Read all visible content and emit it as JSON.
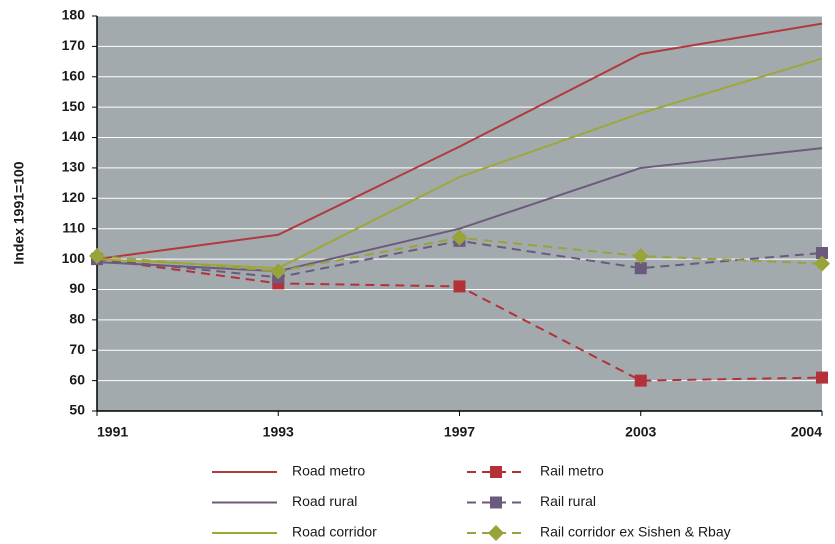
{
  "chart_data": {
    "type": "line",
    "y_label": "Index 1991=100",
    "categories": [
      "1991",
      "1993",
      "1997",
      "2003",
      "2004"
    ],
    "ylim": [
      50,
      180
    ],
    "yticks": [
      50,
      60,
      70,
      80,
      90,
      100,
      110,
      120,
      130,
      140,
      150,
      160,
      170,
      180
    ],
    "grid": true,
    "series": [
      {
        "name": "Road metro",
        "color": "#b03a3e",
        "dash": false,
        "marker": "none",
        "values": [
          100,
          108,
          137,
          167.5,
          177.5
        ]
      },
      {
        "name": "Rail metro",
        "color": "#b3323a",
        "dash": true,
        "marker": "square",
        "values": [
          100,
          92,
          91,
          60,
          61
        ]
      },
      {
        "name": "Road rural",
        "color": "#6e5a7e",
        "dash": false,
        "marker": "none",
        "values": [
          99,
          96,
          110,
          130,
          136.5
        ]
      },
      {
        "name": "Rail rural",
        "color": "#6b5a7e",
        "dash": true,
        "marker": "square",
        "values": [
          100,
          94,
          106,
          97,
          102
        ]
      },
      {
        "name": "Road corridor",
        "color": "#9da83a",
        "dash": false,
        "marker": "none",
        "values": [
          100,
          97,
          127,
          148,
          166
        ]
      },
      {
        "name": "Rail corridor ex Sishen & Rbay",
        "color": "#98a33a",
        "dash": true,
        "marker": "diamond",
        "values": [
          101,
          96,
          107,
          101,
          98.5
        ]
      }
    ]
  }
}
